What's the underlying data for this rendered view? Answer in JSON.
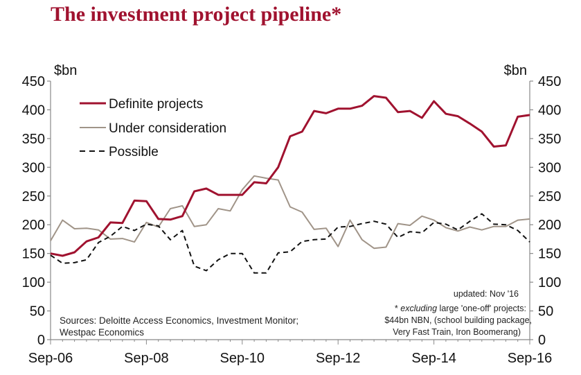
{
  "chart_data": {
    "type": "line",
    "title": "The investment project pipeline*",
    "y_unit_left": "$bn",
    "y_unit_right": "$bn",
    "ylim": [
      0,
      450
    ],
    "yticks": [
      "0",
      "50",
      "100",
      "150",
      "200",
      "250",
      "300",
      "350",
      "400",
      "450"
    ],
    "xlim": [
      0,
      40
    ],
    "xticks": [
      {
        "label": "Sep-06",
        "q": 0
      },
      {
        "label": "Sep-08",
        "q": 8
      },
      {
        "label": "Sep-10",
        "q": 16
      },
      {
        "label": "Sep-12",
        "q": 24
      },
      {
        "label": "Sep-14",
        "q": 32
      },
      {
        "label": "Sep-16",
        "q": 40
      }
    ],
    "grid": false,
    "legend_position": "top-left",
    "series": [
      {
        "name": "Definite projects",
        "color": "#a0122f",
        "style": "solid",
        "values": [
          150,
          146,
          152,
          171,
          178,
          204,
          203,
          242,
          241,
          210,
          209,
          215,
          258,
          263,
          252,
          252,
          252,
          274,
          272,
          300,
          354,
          362,
          398,
          394,
          402,
          402,
          407,
          424,
          421,
          396,
          398,
          386,
          415,
          393,
          389,
          376,
          362,
          336,
          338,
          388,
          391
        ]
      },
      {
        "name": "Under consideration",
        "color": "#a09488",
        "style": "solid",
        "values": [
          172,
          208,
          193,
          194,
          191,
          175,
          176,
          170,
          204,
          196,
          228,
          233,
          197,
          200,
          228,
          224,
          261,
          285,
          281,
          278,
          231,
          222,
          192,
          194,
          162,
          208,
          174,
          159,
          161,
          202,
          199,
          215,
          208,
          195,
          189,
          196,
          191,
          197,
          197,
          208,
          210
        ]
      },
      {
        "name": "Possible",
        "color": "#111111",
        "style": "dashed",
        "values": [
          147,
          133,
          134,
          139,
          169,
          180,
          197,
          190,
          201,
          198,
          174,
          190,
          128,
          120,
          139,
          150,
          150,
          116,
          116,
          151,
          153,
          171,
          174,
          175,
          196,
          197,
          202,
          206,
          201,
          178,
          188,
          186,
          204,
          201,
          191,
          206,
          219,
          201,
          200,
          190,
          170
        ]
      }
    ],
    "annotations": {
      "updated": "updated:  Nov '16",
      "footnote_line1_italic": "excluding",
      "footnote_line1_rest": " large 'one-off' projects:",
      "footnote_line2": "$44bn NBN, (school building package,",
      "footnote_line3": "Very Fast Train, Iron Boomerang)",
      "footnote_star": "* ",
      "sources_line1": "Sources: Deloitte Access Economics, Investment Monitor;",
      "sources_line2": "Westpac Economics"
    }
  }
}
